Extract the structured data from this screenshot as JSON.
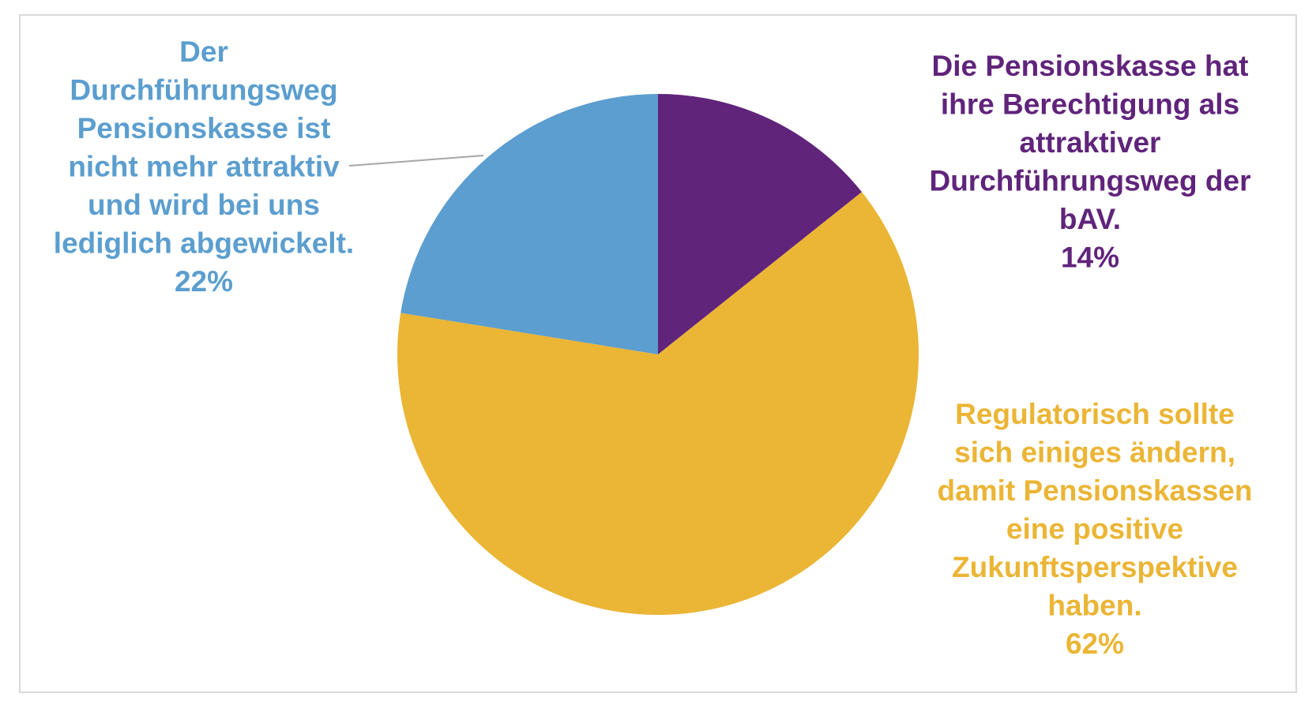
{
  "chart_data": {
    "type": "pie",
    "title": "",
    "start_angle_deg": 0,
    "direction": "clockwise",
    "slices": [
      {
        "label_lines": [
          "Die Pensionskasse hat",
          "ihre Berechtigung als",
          "attraktiver",
          "Durchführungsweg der",
          "bAV."
        ],
        "value": 14,
        "value_label": "14%",
        "color": "#60247b"
      },
      {
        "label_lines": [
          "Regulatorisch sollte",
          "sich einiges ändern,",
          "damit Pensionskassen",
          "eine positive",
          "Zukunftsperspektive",
          "haben."
        ],
        "value": 62,
        "value_label": "62%",
        "color": "#ebb535"
      },
      {
        "label_lines": [
          "Der",
          "Durchführungsweg",
          "Pensionskasse ist",
          "nicht mehr attraktiv",
          "und wird bei uns",
          "lediglich abgewickelt."
        ],
        "value": 22,
        "value_label": "22%",
        "color": "#5b9ecf"
      }
    ],
    "legend": "none",
    "leader_line_color": "#a6a6a6"
  }
}
